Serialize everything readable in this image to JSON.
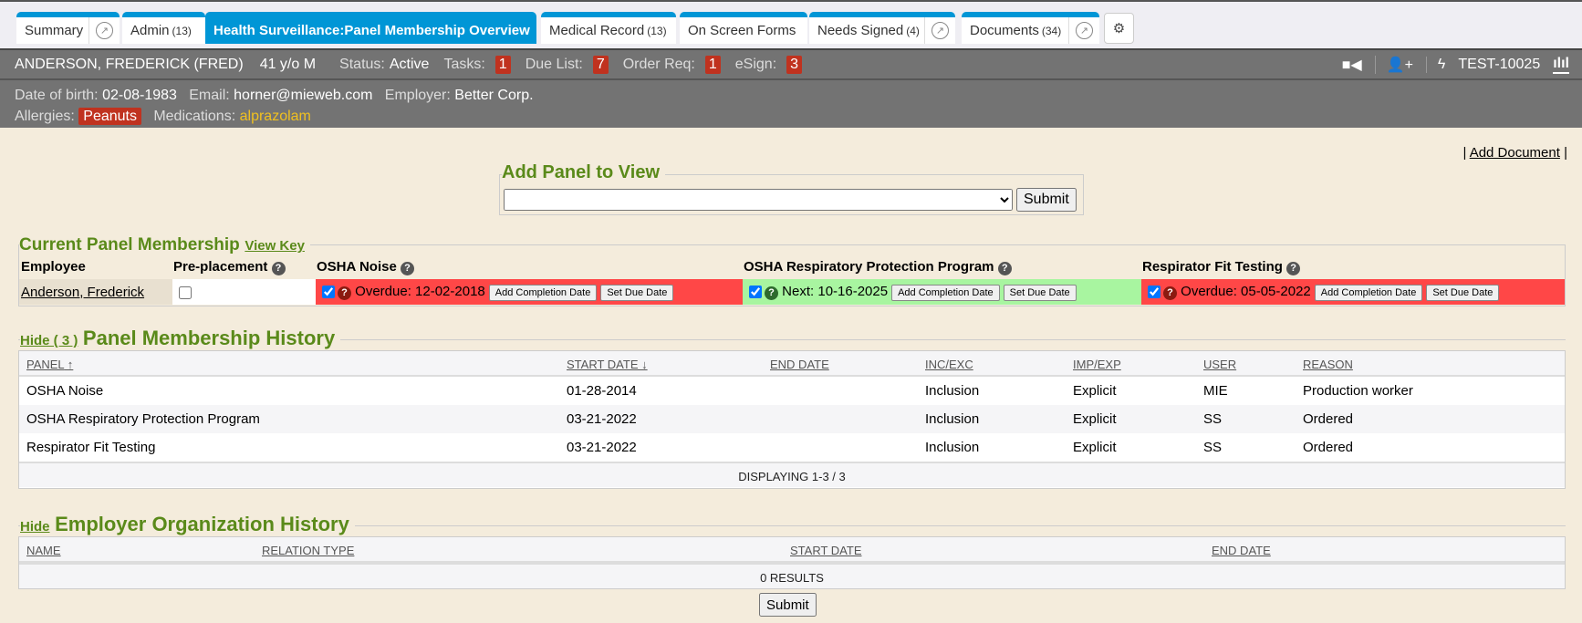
{
  "tabs": [
    {
      "label": "Summary",
      "count": "",
      "ext": true
    },
    {
      "label": "Admin",
      "count": "(13)"
    },
    {
      "label": "Health Surveillance:Panel Membership Overview",
      "count": "",
      "active": true
    },
    {
      "label": "Medical Record",
      "count": "(13)"
    },
    {
      "label": "On Screen Forms",
      "count": ""
    },
    {
      "label": "Needs Signed",
      "count": "(4)",
      "ext": true
    },
    {
      "label": "Documents",
      "count": "(34)",
      "ext": true
    }
  ],
  "patient": {
    "name": "ANDERSON, FREDERICK (FRED)",
    "age_sex": "41 y/o M",
    "status_label": "Status:",
    "status": "Active",
    "tasks_label": "Tasks:",
    "tasks": "1",
    "due_label": "Due List:",
    "due": "7",
    "order_label": "Order Req:",
    "order": "1",
    "esign_label": "eSign:",
    "esign": "3",
    "id": "TEST-10025",
    "dob_label": "Date of birth:",
    "dob": "02-08-1983",
    "email_label": "Email:",
    "email": "horner@mieweb.com",
    "employer_label": "Employer:",
    "employer": "Better Corp.",
    "allergies_label": "Allergies:",
    "allergy": "Peanuts",
    "medications_label": "Medications:",
    "medication": "alprazolam"
  },
  "colors": {
    "accent": "#0096d6",
    "header": "#737373",
    "badge": "#c0321f",
    "overdue": "#ff4747",
    "next": "#a8f5a0",
    "legend": "#5a8a1a",
    "medication": "#f0c020"
  },
  "add_document": "Add Document",
  "add_panel": {
    "legend": "Add Panel to View",
    "select_value": "",
    "submit": "Submit"
  },
  "current": {
    "legend": "Current Panel Membership",
    "view_key": "View Key",
    "headers": [
      "Employee",
      "Pre-placement",
      "OSHA Noise",
      "OSHA Respiratory Protection Program",
      "Respirator Fit Testing"
    ],
    "employee": "Anderson, Frederick",
    "cells": [
      {
        "status": "Overdue: 12-02-2018",
        "state": "overdue"
      },
      {
        "status": "Next: 10-16-2025",
        "state": "next"
      },
      {
        "status": "Overdue: 05-05-2022",
        "state": "overdue"
      }
    ],
    "add_completion": "Add Completion Date",
    "set_due": "Set Due Date"
  },
  "history": {
    "hide": "Hide ( 3 )",
    "legend": "Panel Membership History",
    "columns": [
      "PANEL",
      "START DATE",
      "END DATE",
      "INC/EXC",
      "IMP/EXP",
      "USER",
      "REASON"
    ],
    "rows": [
      [
        "OSHA Noise",
        "01-28-2014",
        "",
        "Inclusion",
        "Explicit",
        "MIE",
        "Production worker"
      ],
      [
        "OSHA Respiratory Protection Program",
        "03-21-2022",
        "",
        "Inclusion",
        "Explicit",
        "SS",
        "Ordered"
      ],
      [
        "Respirator Fit Testing",
        "03-21-2022",
        "",
        "Inclusion",
        "Explicit",
        "SS",
        "Ordered"
      ]
    ],
    "footer": "DISPLAYING 1-3 / 3"
  },
  "employer_history": {
    "hide": "Hide",
    "legend": "Employer Organization History",
    "columns": [
      "NAME",
      "RELATION TYPE",
      "START DATE",
      "END DATE"
    ],
    "footer": "0 RESULTS"
  },
  "submit": "Submit"
}
